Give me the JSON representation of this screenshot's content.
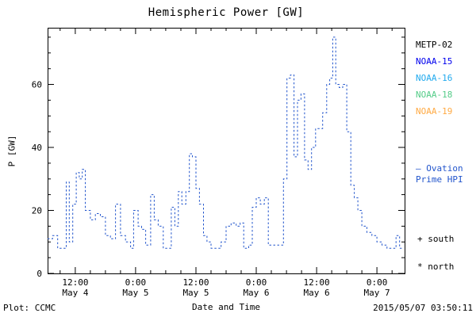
{
  "header": {
    "title": "Hemispheric Power [GW]"
  },
  "legend": {
    "satellites": [
      {
        "label": "METP-02",
        "color": "#000000"
      },
      {
        "label": "NOAA-15",
        "color": "#0000ee"
      },
      {
        "label": "NOAA-16",
        "color": "#22aaee"
      },
      {
        "label": "NOAA-18",
        "color": "#55cc88"
      },
      {
        "label": "NOAA-19",
        "color": "#ffaa44"
      }
    ],
    "model": {
      "symbol": "—",
      "line1": "Ovation",
      "line2": "Prime HPI",
      "color": "#2255cc"
    },
    "markers": [
      {
        "symbol": "+",
        "label": "south"
      },
      {
        "symbol": "*",
        "label": "north"
      }
    ]
  },
  "footer": {
    "credit": "Plot: CCMC",
    "timestamp": "2015/05/07 03:50:11"
  },
  "chart_data": {
    "type": "line",
    "step": true,
    "line_style": "dashed",
    "line_color": "#2255cc",
    "grid": false,
    "title": "Hemispheric Power [GW]",
    "xlabel": "Date and Time",
    "ylabel": "P [GW]",
    "ylim": [
      0,
      78
    ],
    "xlim_hours": [
      6.5,
      77.5
    ],
    "y_ticks": [
      0,
      20,
      40,
      60
    ],
    "y_minor_step": 5,
    "x_minor_step": 3,
    "x_ticks": [
      {
        "hour": 12,
        "time": "12:00",
        "date": "May 4"
      },
      {
        "hour": 24,
        "time": "0:00",
        "date": "May 5"
      },
      {
        "hour": 36,
        "time": "12:00",
        "date": "May 5"
      },
      {
        "hour": 48,
        "time": "0:00",
        "date": "May 6"
      },
      {
        "hour": 60,
        "time": "12:00",
        "date": "May 6"
      },
      {
        "hour": 72,
        "time": "0:00",
        "date": "May 7"
      }
    ],
    "x_hours": [
      6.5,
      7.5,
      8.5,
      9.5,
      10.2,
      10.8,
      11.5,
      12.2,
      12.8,
      13.4,
      14,
      15,
      16,
      17,
      18,
      19,
      20,
      21,
      22,
      23,
      23.6,
      24.5,
      25.2,
      26,
      27,
      27.7,
      28.5,
      29.5,
      30.5,
      31.1,
      31.8,
      32.5,
      33.2,
      34,
      34.7,
      35.3,
      36,
      36.7,
      37.5,
      38.2,
      39,
      40,
      41,
      42,
      43,
      44,
      44.8,
      45.5,
      46.5,
      47.2,
      48,
      48.8,
      49.6,
      50.4,
      51.4,
      52.4,
      53.4,
      54.1,
      54.8,
      55.5,
      56.2,
      56.9,
      57.6,
      58.3,
      59,
      59.8,
      60.5,
      61.2,
      62,
      62.6,
      63.2,
      63.8,
      64.5,
      65.2,
      66,
      66.8,
      67.5,
      68.2,
      69,
      70,
      71,
      72,
      73,
      74,
      75,
      75.8,
      76.5
    ],
    "values": [
      11,
      12,
      8,
      8,
      29,
      10,
      22,
      32,
      30,
      33,
      20,
      17,
      19,
      18,
      12,
      11,
      22,
      12,
      10,
      8,
      20,
      15,
      14,
      9,
      25,
      17,
      15,
      8,
      8,
      21,
      15,
      26,
      22,
      26,
      38,
      37,
      27,
      22,
      12,
      10,
      8,
      8,
      10,
      15,
      16,
      15,
      16,
      8,
      9,
      21,
      24,
      22,
      24,
      9,
      9,
      9,
      30,
      62,
      63,
      37,
      55,
      57,
      36,
      33,
      40,
      46,
      46,
      51,
      60,
      62,
      75,
      60,
      59,
      60,
      45,
      28,
      24,
      20,
      15,
      13,
      12,
      10,
      9,
      8,
      8,
      12,
      8
    ]
  }
}
